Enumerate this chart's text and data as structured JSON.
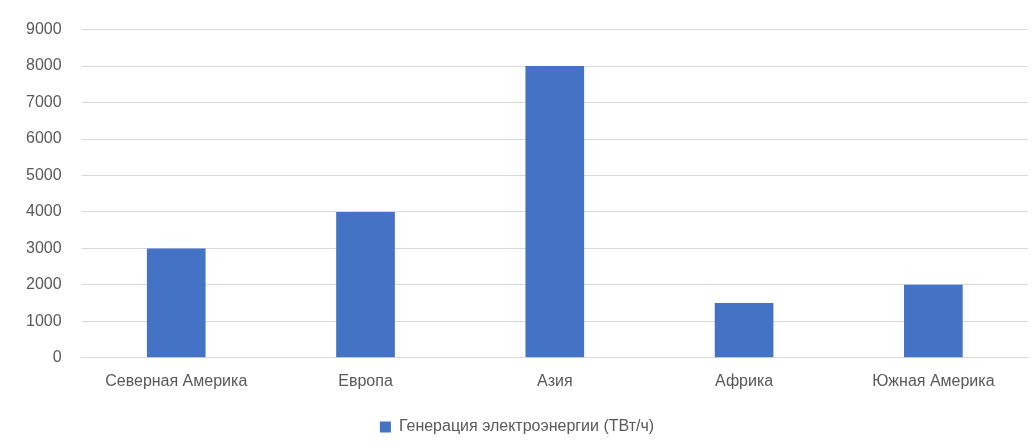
{
  "chart_data": {
    "type": "bar",
    "categories": [
      "Северная Америка",
      "Европа",
      "Азия",
      "Африка",
      "Южная Америка"
    ],
    "series": [
      {
        "name": "Генерация электроэнергии (ТВт/ч)",
        "color": "#4472c4",
        "values": [
          3000,
          4000,
          8000,
          1500,
          2000
        ]
      }
    ],
    "ylim": [
      0,
      9000
    ],
    "yticks": [
      0,
      1000,
      2000,
      3000,
      4000,
      5000,
      6000,
      7000,
      8000,
      9000
    ],
    "grid": "y",
    "legend": "bottom"
  }
}
